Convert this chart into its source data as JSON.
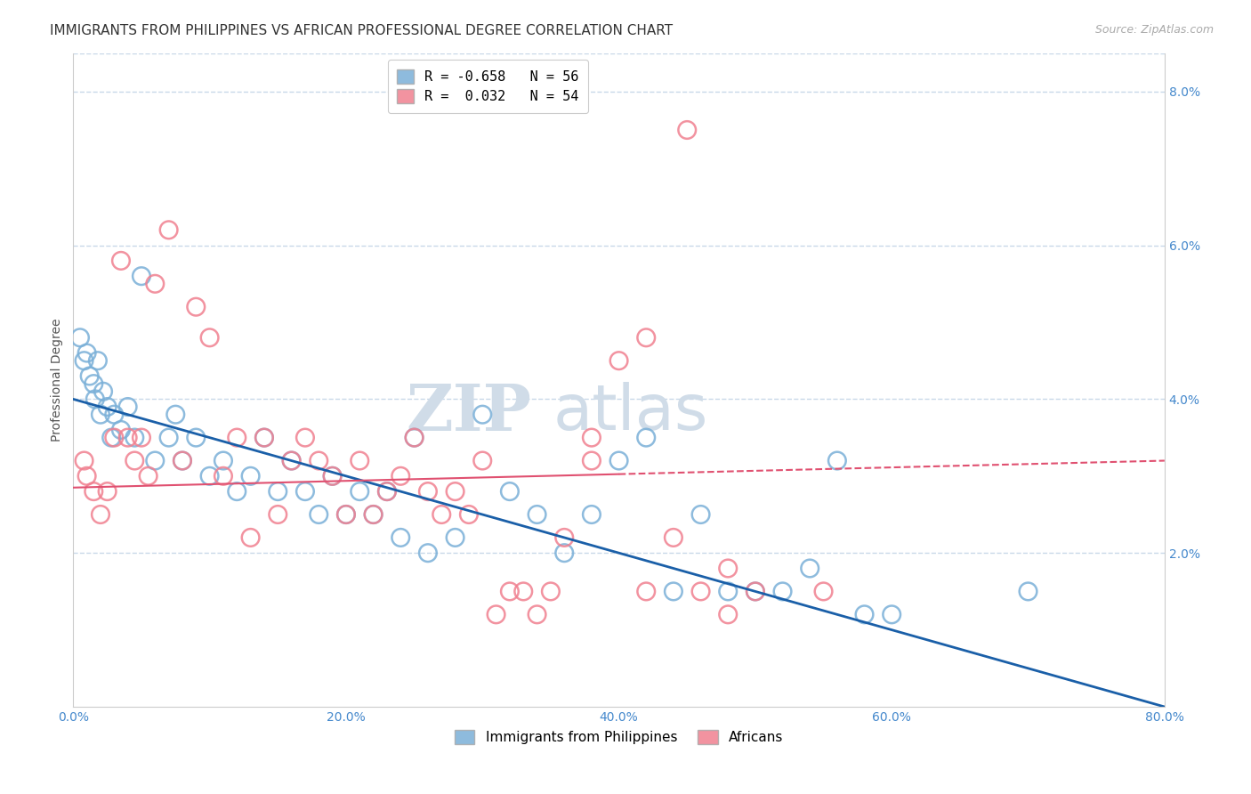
{
  "title": "IMMIGRANTS FROM PHILIPPINES VS AFRICAN PROFESSIONAL DEGREE CORRELATION CHART",
  "source": "Source: ZipAtlas.com",
  "ylabel": "Professional Degree",
  "x_tick_labels": [
    "0.0%",
    "20.0%",
    "40.0%",
    "60.0%",
    "80.0%"
  ],
  "x_tick_values": [
    0.0,
    20.0,
    40.0,
    60.0,
    80.0
  ],
  "y_tick_labels": [
    "2.0%",
    "4.0%",
    "6.0%",
    "8.0%"
  ],
  "y_tick_values": [
    2.0,
    4.0,
    6.0,
    8.0
  ],
  "xlim": [
    0.0,
    80.0
  ],
  "ylim": [
    0.0,
    8.5
  ],
  "legend_entries": [
    {
      "label": "R = -0.658   N = 56",
      "color": "#a8c4e0"
    },
    {
      "label": "R =  0.032   N = 54",
      "color": "#f4a0b0"
    }
  ],
  "legend_labels": [
    "Immigrants from Philippines",
    "Africans"
  ],
  "philippines_color": "#7ab0d8",
  "africans_color": "#f08090",
  "trend_philippines_color": "#1a5fa8",
  "trend_africans_color": "#e05070",
  "trend_phil_y0": 4.0,
  "trend_phil_y1": 0.0,
  "trend_afr_y0": 2.85,
  "trend_afr_y1": 3.2,
  "trend_afr_solid_end": 40.0,
  "watermark_zip": "ZIP",
  "watermark_atlas": "atlas",
  "philippines_x": [
    0.5,
    0.8,
    1.0,
    1.2,
    1.5,
    1.6,
    1.8,
    2.0,
    2.2,
    2.5,
    2.8,
    3.0,
    3.5,
    4.0,
    4.5,
    5.0,
    6.0,
    7.0,
    7.5,
    8.0,
    9.0,
    10.0,
    11.0,
    12.0,
    13.0,
    14.0,
    15.0,
    16.0,
    17.0,
    18.0,
    19.0,
    20.0,
    21.0,
    22.0,
    23.0,
    24.0,
    25.0,
    26.0,
    28.0,
    30.0,
    32.0,
    34.0,
    36.0,
    38.0,
    40.0,
    42.0,
    44.0,
    46.0,
    48.0,
    50.0,
    52.0,
    54.0,
    56.0,
    58.0,
    60.0,
    70.0
  ],
  "philippines_y": [
    4.8,
    4.5,
    4.6,
    4.3,
    4.2,
    4.0,
    4.5,
    3.8,
    4.1,
    3.9,
    3.5,
    3.8,
    3.6,
    3.9,
    3.5,
    5.6,
    3.2,
    3.5,
    3.8,
    3.2,
    3.5,
    3.0,
    3.2,
    2.8,
    3.0,
    3.5,
    2.8,
    3.2,
    2.8,
    2.5,
    3.0,
    2.5,
    2.8,
    2.5,
    2.8,
    2.2,
    3.5,
    2.0,
    2.2,
    3.8,
    2.8,
    2.5,
    2.0,
    2.5,
    3.2,
    3.5,
    1.5,
    2.5,
    1.5,
    1.5,
    1.5,
    1.8,
    3.2,
    1.2,
    1.2,
    1.5
  ],
  "africans_x": [
    0.8,
    1.0,
    1.5,
    2.0,
    2.5,
    3.0,
    3.5,
    4.0,
    4.5,
    5.0,
    5.5,
    6.0,
    7.0,
    8.0,
    9.0,
    10.0,
    11.0,
    12.0,
    13.0,
    14.0,
    15.0,
    16.0,
    17.0,
    18.0,
    19.0,
    20.0,
    21.0,
    22.0,
    23.0,
    24.0,
    25.0,
    26.0,
    27.0,
    28.0,
    29.0,
    30.0,
    31.0,
    32.0,
    33.0,
    34.0,
    35.0,
    36.0,
    38.0,
    40.0,
    42.0,
    44.0,
    46.0,
    48.0,
    50.0,
    38.0,
    42.0,
    45.0,
    48.0,
    55.0
  ],
  "africans_y": [
    3.2,
    3.0,
    2.8,
    2.5,
    2.8,
    3.5,
    5.8,
    3.5,
    3.2,
    3.5,
    3.0,
    5.5,
    6.2,
    3.2,
    5.2,
    4.8,
    3.0,
    3.5,
    2.2,
    3.5,
    2.5,
    3.2,
    3.5,
    3.2,
    3.0,
    2.5,
    3.2,
    2.5,
    2.8,
    3.0,
    3.5,
    2.8,
    2.5,
    2.8,
    2.5,
    3.2,
    1.2,
    1.5,
    1.5,
    1.2,
    1.5,
    2.2,
    3.2,
    4.5,
    4.8,
    2.2,
    1.5,
    1.8,
    1.5,
    3.5,
    1.5,
    7.5,
    1.2,
    1.5
  ],
  "grid_color": "#c8d8e8",
  "background_color": "#ffffff",
  "title_fontsize": 11,
  "source_fontsize": 9,
  "axis_label_fontsize": 10,
  "tick_fontsize": 10,
  "watermark_color": "#d0dce8",
  "watermark_fontsize_zip": 52,
  "watermark_fontsize_atlas": 52
}
